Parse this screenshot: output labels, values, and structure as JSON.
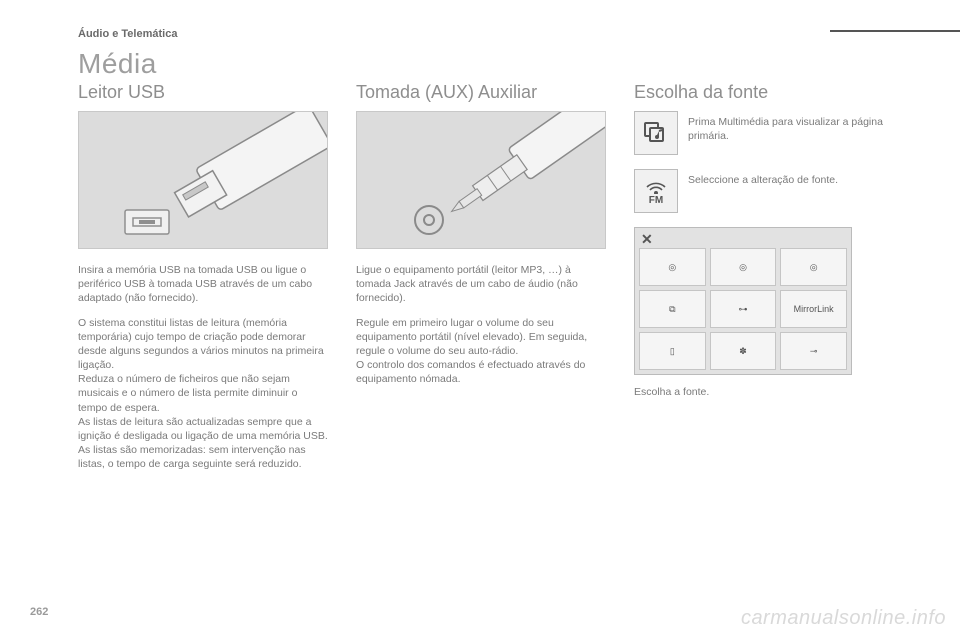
{
  "section_label": "Áudio e Telemática",
  "page_title": "Média",
  "page_number": "262",
  "watermark": "carmanualsonline.info",
  "col1": {
    "heading": "Leitor USB",
    "illustration": {
      "name": "usb-connector-illustration",
      "background": "#dcdcdc",
      "plug_fill": "#f4f4f4",
      "plug_stroke": "#8a8a8a",
      "port_fill": "#f0f0f0",
      "port_stroke": "#8f8f8f"
    },
    "para1": "Insira a memória USB na tomada USB ou ligue o periférico USB à tomada USB através de um cabo adaptado (não fornecido).",
    "para2": "O sistema constitui listas de leitura (memória temporária) cujo tempo de criação pode demorar desde alguns segundos a vários minutos na primeira ligação.\nReduza o número de ficheiros que não sejam musicais e o número de lista permite diminuir o tempo de espera.\nAs listas de leitura são actualizadas sempre que a ignição é desligada ou ligação de uma memória USB. As listas são memorizadas: sem intervenção nas listas, o tempo de carga seguinte será reduzido."
  },
  "col2": {
    "heading": "Tomada (AUX) Auxiliar",
    "illustration": {
      "name": "aux-jack-illustration",
      "background": "#dcdcdc",
      "jack_fill": "#f4f4f4",
      "jack_stroke": "#8a8a8a",
      "socket_stroke": "#8a8a8a"
    },
    "para1": "Ligue o equipamento portátil (leitor MP3, …) à tomada Jack através de um cabo de áudio (não fornecido).",
    "para2": "Regule em primeiro lugar o volume do seu equipamento portátil (nível elevado). Em seguida, regule o volume do seu auto-rádio.\nO controlo dos comandos é efectuado através do equipamento nómada."
  },
  "col3": {
    "heading": "Escolha da fonte",
    "icon1": {
      "label": "media-icon",
      "desc": "Prima Multimédia para visualizar a página primária."
    },
    "icon2": {
      "label": "fm-icon",
      "text": "FM",
      "desc": "Seleccione a alteração de fonte."
    },
    "source_panel": {
      "close_glyph": "✕",
      "cells": [
        {
          "name": "radio-disc-1-icon",
          "glyph": "◎"
        },
        {
          "name": "radio-disc-2-icon",
          "glyph": "◎"
        },
        {
          "name": "radio-disc-3-icon",
          "glyph": "◎"
        },
        {
          "name": "sd-card-icon",
          "glyph": "⧉"
        },
        {
          "name": "usb-icon",
          "glyph": "⊶"
        },
        {
          "name": "mirrorlink-icon",
          "glyph": "MirrorLink"
        },
        {
          "name": "ipod-icon",
          "glyph": "▯"
        },
        {
          "name": "bluetooth-icon",
          "glyph": "✽"
        },
        {
          "name": "aux-icon",
          "glyph": "⊸"
        }
      ]
    },
    "caption": "Escolha a fonte."
  }
}
